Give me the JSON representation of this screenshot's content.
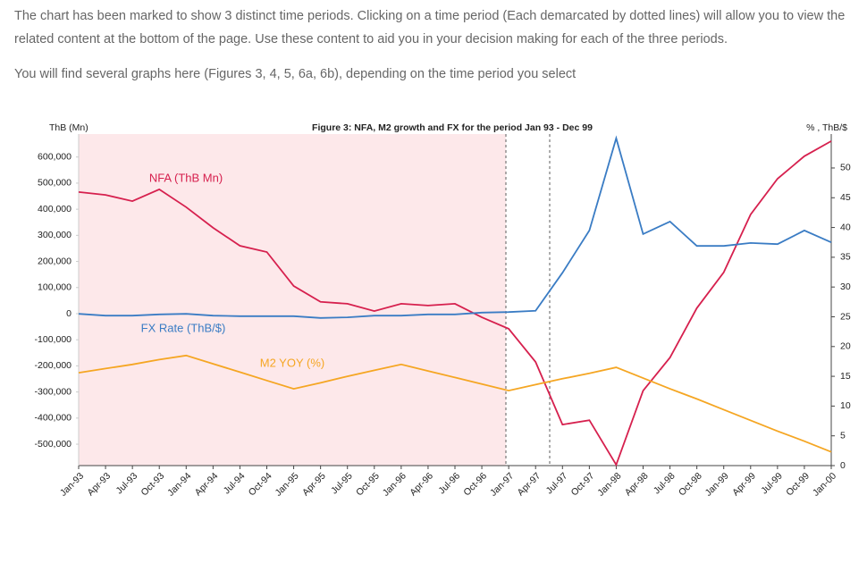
{
  "paragraphs": [
    "The chart has been marked to show 3 distinct time periods. Clicking on a time period (Each demarcated by dotted lines) will allow you to view the related content at the bottom of the page. Use these content to aid you in your decision making for each of the three periods.",
    "You will find several graphs here (Figures 3, 4, 5, 6a, 6b), depending on the time period you select"
  ],
  "chart_data": {
    "type": "line",
    "title": "Figure 3: NFA, M2 growth and FX for the period Jan 93 - Dec 99",
    "ylabel": "ThB (Mn)",
    "y2label": "% , ThB/$",
    "categories": [
      "Jan-93",
      "Apr-93",
      "Jul-93",
      "Oct-93",
      "Jan-94",
      "Apr-94",
      "Jul-94",
      "Oct-94",
      "Jan-95",
      "Apr-95",
      "Jul-95",
      "Oct-95",
      "Jan-96",
      "Apr-96",
      "Jul-96",
      "Oct-96",
      "Jan-97",
      "Apr-97",
      "Jul-97",
      "Oct-97",
      "Jan-98",
      "Apr-98",
      "Jul-98",
      "Oct-98",
      "Jan-99",
      "Apr-99",
      "Jul-99",
      "Oct-99",
      "Jan-00"
    ],
    "series": [
      {
        "name": "NFA (ThB Mn)",
        "color": "#d6204e",
        "axis": "y",
        "values": [
          466000,
          455000,
          431000,
          476000,
          408000,
          329000,
          260000,
          236000,
          106000,
          45000,
          38000,
          10000,
          38000,
          31000,
          38000,
          -14000,
          -58000,
          -185000,
          -425000,
          -408000,
          -579000,
          -295000,
          -168000,
          21000,
          158000,
          380000,
          517000,
          603000,
          661000
        ]
      },
      {
        "name": "FX Rate (ThB/$)",
        "color": "#3a7cc4",
        "axis": "y2",
        "values": [
          25.5,
          25.2,
          25.2,
          25.4,
          25.5,
          25.2,
          25.1,
          25.1,
          25.1,
          24.8,
          24.9,
          25.2,
          25.2,
          25.4,
          25.4,
          25.7,
          25.8,
          26.0,
          32.4,
          39.5,
          55.0,
          38.9,
          41.0,
          36.9,
          36.9,
          37.4,
          37.2,
          39.5,
          37.5
        ]
      },
      {
        "name": "M2 YOY (%)",
        "color": "#f5a623",
        "axis": "y2",
        "values": [
          15.6,
          16.3,
          17.0,
          17.8,
          18.5,
          17.1,
          15.7,
          14.3,
          12.9,
          13.9,
          15.0,
          16.0,
          17.0,
          15.9,
          14.8,
          13.7,
          12.6,
          13.6,
          14.6,
          15.5,
          16.5,
          14.7,
          12.9,
          11.2,
          9.4,
          7.6,
          5.8,
          4.1,
          2.3
        ]
      }
    ],
    "ylim": [
      -582000,
      688000
    ],
    "yticks": [
      {
        "value": -500000,
        "label": "-500,000"
      },
      {
        "value": -400000,
        "label": "-400,000"
      },
      {
        "value": -300000,
        "label": "-300,000"
      },
      {
        "value": -200000,
        "label": "-200,000"
      },
      {
        "value": -100000,
        "label": "-100,000"
      },
      0,
      {
        "value": 100000,
        "label": "100,000"
      },
      {
        "value": 200000,
        "label": "200,000"
      },
      {
        "value": 300000,
        "label": "300,000"
      },
      {
        "value": 400000,
        "label": "400,000"
      },
      {
        "value": 500000,
        "label": "500,000"
      },
      {
        "value": 600000,
        "label": "600,000"
      }
    ],
    "y2lim": [
      0,
      55.7
    ],
    "y2ticks": [
      0,
      5,
      10,
      15,
      20,
      25,
      30,
      35,
      40,
      45,
      50
    ],
    "grid": false
  }
}
